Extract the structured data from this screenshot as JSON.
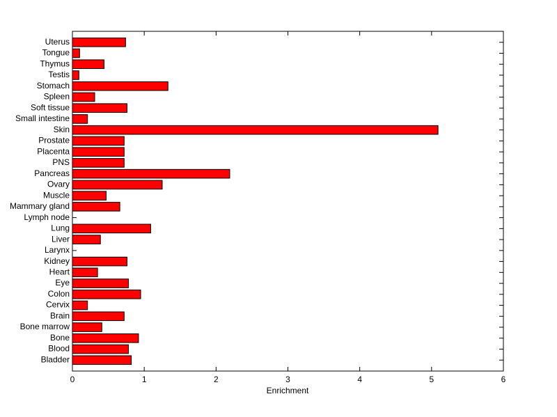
{
  "chart_data": {
    "type": "barh",
    "xlabel": "Enrichment",
    "categories": [
      "Bladder",
      "Blood",
      "Bone",
      "Bone marrow",
      "Brain",
      "Cervix",
      "Colon",
      "Eye",
      "Heart",
      "Kidney",
      "Larynx",
      "Liver",
      "Lung",
      "Lymph node",
      "Mammary gland",
      "Muscle",
      "Ovary",
      "Pancreas",
      "PNS",
      "Placenta",
      "Prostate",
      "Skin",
      "Small intestine",
      "Soft tissue",
      "Spleen",
      "Stomach",
      "Testis",
      "Thymus",
      "Tongue",
      "Uterus"
    ],
    "values": [
      0.82,
      0.78,
      0.92,
      0.41,
      0.72,
      0.21,
      0.95,
      0.78,
      0.35,
      0.76,
      0,
      0.39,
      1.09,
      0,
      0.66,
      0.47,
      1.25,
      2.19,
      0.72,
      0.72,
      0.72,
      5.09,
      0.21,
      0.76,
      0.31,
      1.33,
      0.09,
      0.44,
      0.1,
      0.74
    ],
    "color": "#ff0000",
    "xlim": [
      0,
      6
    ],
    "xticks": [
      0,
      1,
      2,
      3,
      4,
      5,
      6
    ]
  }
}
